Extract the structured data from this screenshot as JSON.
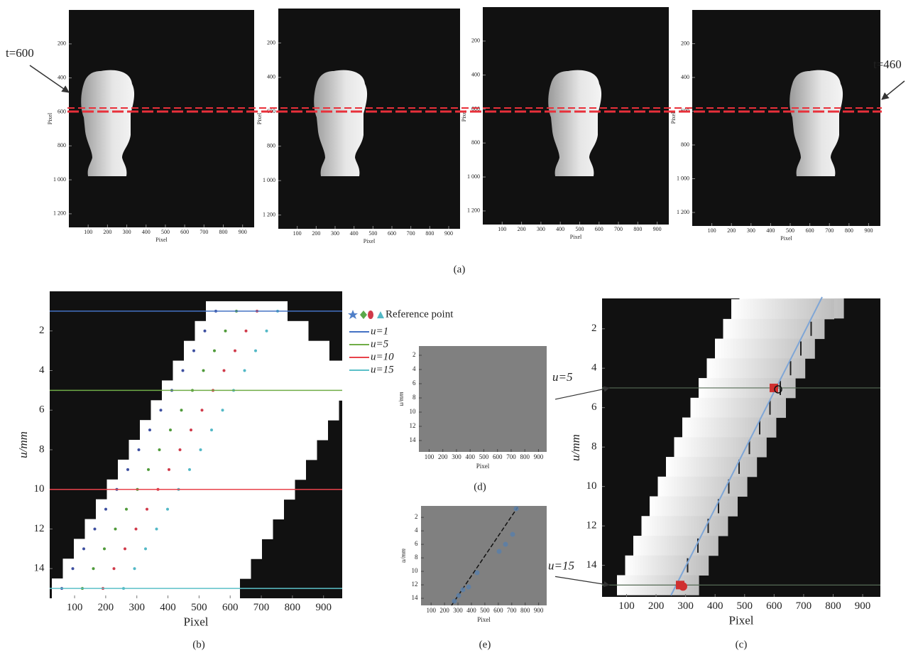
{
  "figure": {
    "panel_a": {
      "caption": "(a)",
      "annotations": [
        "t=600",
        "t=460"
      ],
      "images": [
        {
          "xlabel": "Pixel",
          "ylabel": "Pixel",
          "xlim": [
            0,
            960
          ],
          "ylim": [
            0,
            1280
          ],
          "xticks": [
            100,
            200,
            300,
            400,
            500,
            600,
            700,
            800,
            900
          ],
          "yticks": [
            200,
            400,
            600,
            800,
            {
              "value": 1000,
              "label": "1 000"
            },
            {
              "value": 1200,
              "label": "1 200"
            }
          ]
        },
        {
          "xlabel": "Pixel",
          "ylabel": "Pixel",
          "xlim": [
            0,
            960
          ],
          "ylim": [
            0,
            1280
          ],
          "xticks": [
            100,
            200,
            300,
            400,
            500,
            600,
            700,
            800,
            900
          ],
          "yticks": [
            200,
            400,
            600,
            800,
            {
              "value": 1000,
              "label": "1 000"
            },
            {
              "value": 1200,
              "label": "1 200"
            }
          ]
        },
        {
          "xlabel": "Pixel",
          "ylabel": "Pixel",
          "xlim": [
            0,
            960
          ],
          "ylim": [
            0,
            1280
          ],
          "xticks": [
            100,
            200,
            300,
            400,
            500,
            600,
            700,
            800,
            900
          ],
          "yticks": [
            200,
            400,
            600,
            800,
            {
              "value": 1000,
              "label": "1 000"
            },
            {
              "value": 1200,
              "label": "1 200"
            }
          ]
        },
        {
          "xlabel": "Pixel",
          "ylabel": "Pixel",
          "xlim": [
            0,
            960
          ],
          "ylim": [
            0,
            1280
          ],
          "xticks": [
            100,
            200,
            300,
            400,
            500,
            600,
            700,
            800,
            900
          ],
          "yticks": [
            200,
            400,
            600,
            800,
            {
              "value": 1000,
              "label": "1 000"
            },
            {
              "value": 1200,
              "label": "1 200"
            }
          ]
        }
      ]
    },
    "panel_b": {
      "caption": "(b)",
      "xlabel": "Pixel",
      "ylabel": "u/mm",
      "xlim": [
        20,
        960
      ],
      "ylim": [
        0,
        15.5
      ],
      "xticks": [
        100,
        200,
        300,
        400,
        500,
        600,
        700,
        800,
        900
      ],
      "yticks": [
        2,
        4,
        6,
        8,
        10,
        12,
        14
      ],
      "legend_title": "Reference point",
      "lines": [
        {
          "name": "u=1",
          "color": "#4472c4",
          "value": 1
        },
        {
          "name": "u=5",
          "color": "#70ad47",
          "value": 5
        },
        {
          "name": "u=10",
          "color": "#e8434b",
          "value": 10
        },
        {
          "name": "u=15",
          "color": "#5bc0c8",
          "value": 15
        }
      ]
    },
    "panel_c": {
      "caption": "(c)",
      "xlabel": "Pixel",
      "ylabel": "u/mm",
      "xlim": [
        17,
        960
      ],
      "ylim": [
        0.46,
        15.6
      ],
      "xticks": [
        100,
        200,
        300,
        400,
        500,
        600,
        700,
        800,
        900
      ],
      "yticks": [
        2,
        4,
        6,
        8,
        10,
        12,
        14
      ],
      "annotations": [
        {
          "text": "u=5",
          "value": 5
        },
        {
          "text": "u=15",
          "value": 15
        }
      ]
    },
    "panel_d": {
      "caption": "(d)",
      "xlabel": "Pixel",
      "ylabel": "u/mm",
      "xlim": [
        25,
        960
      ],
      "ylim": [
        0.7,
        15.6
      ],
      "xticks": [
        100,
        200,
        300,
        400,
        500,
        600,
        700,
        800,
        900
      ],
      "yticks": [
        2,
        4,
        6,
        8,
        10,
        12,
        14
      ]
    },
    "panel_e": {
      "caption": "(e)",
      "xlabel": "Pixel",
      "ylabel": "u/mm",
      "xlim": [
        25,
        960
      ],
      "ylim": [
        0.3,
        15.05
      ],
      "xticks": [
        100,
        200,
        300,
        400,
        500,
        600,
        700,
        800,
        900
      ],
      "yticks": [
        2,
        4,
        6,
        8,
        10,
        12,
        14
      ]
    }
  }
}
